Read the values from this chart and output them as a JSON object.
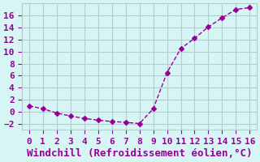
{
  "x": [
    0,
    1,
    2,
    3,
    4,
    5,
    6,
    7,
    8,
    9,
    10,
    11,
    12,
    13,
    14,
    15,
    16
  ],
  "y": [
    1.0,
    0.5,
    -0.2,
    -0.7,
    -1.1,
    -1.4,
    -1.6,
    -1.75,
    -1.95,
    0.5,
    6.5,
    10.5,
    12.2,
    14.1,
    15.6,
    17.0,
    17.3
  ],
  "line_color": "#990099",
  "marker": "D",
  "marker_size": 3,
  "bg_color": "#d8f5f5",
  "grid_color": "#b0d0d0",
  "xlabel": "Windchill (Refroidissement éolien,°C)",
  "xlabel_color": "#990099",
  "xlabel_fontsize": 9,
  "tick_color": "#990099",
  "tick_fontsize": 8,
  "xlim": [
    -0.5,
    16.5
  ],
  "ylim": [
    -3,
    18
  ],
  "yticks": [
    -2,
    0,
    2,
    4,
    6,
    8,
    10,
    12,
    14,
    16
  ],
  "xticks": [
    0,
    1,
    2,
    3,
    4,
    5,
    6,
    7,
    8,
    9,
    10,
    11,
    12,
    13,
    14,
    15,
    16
  ]
}
